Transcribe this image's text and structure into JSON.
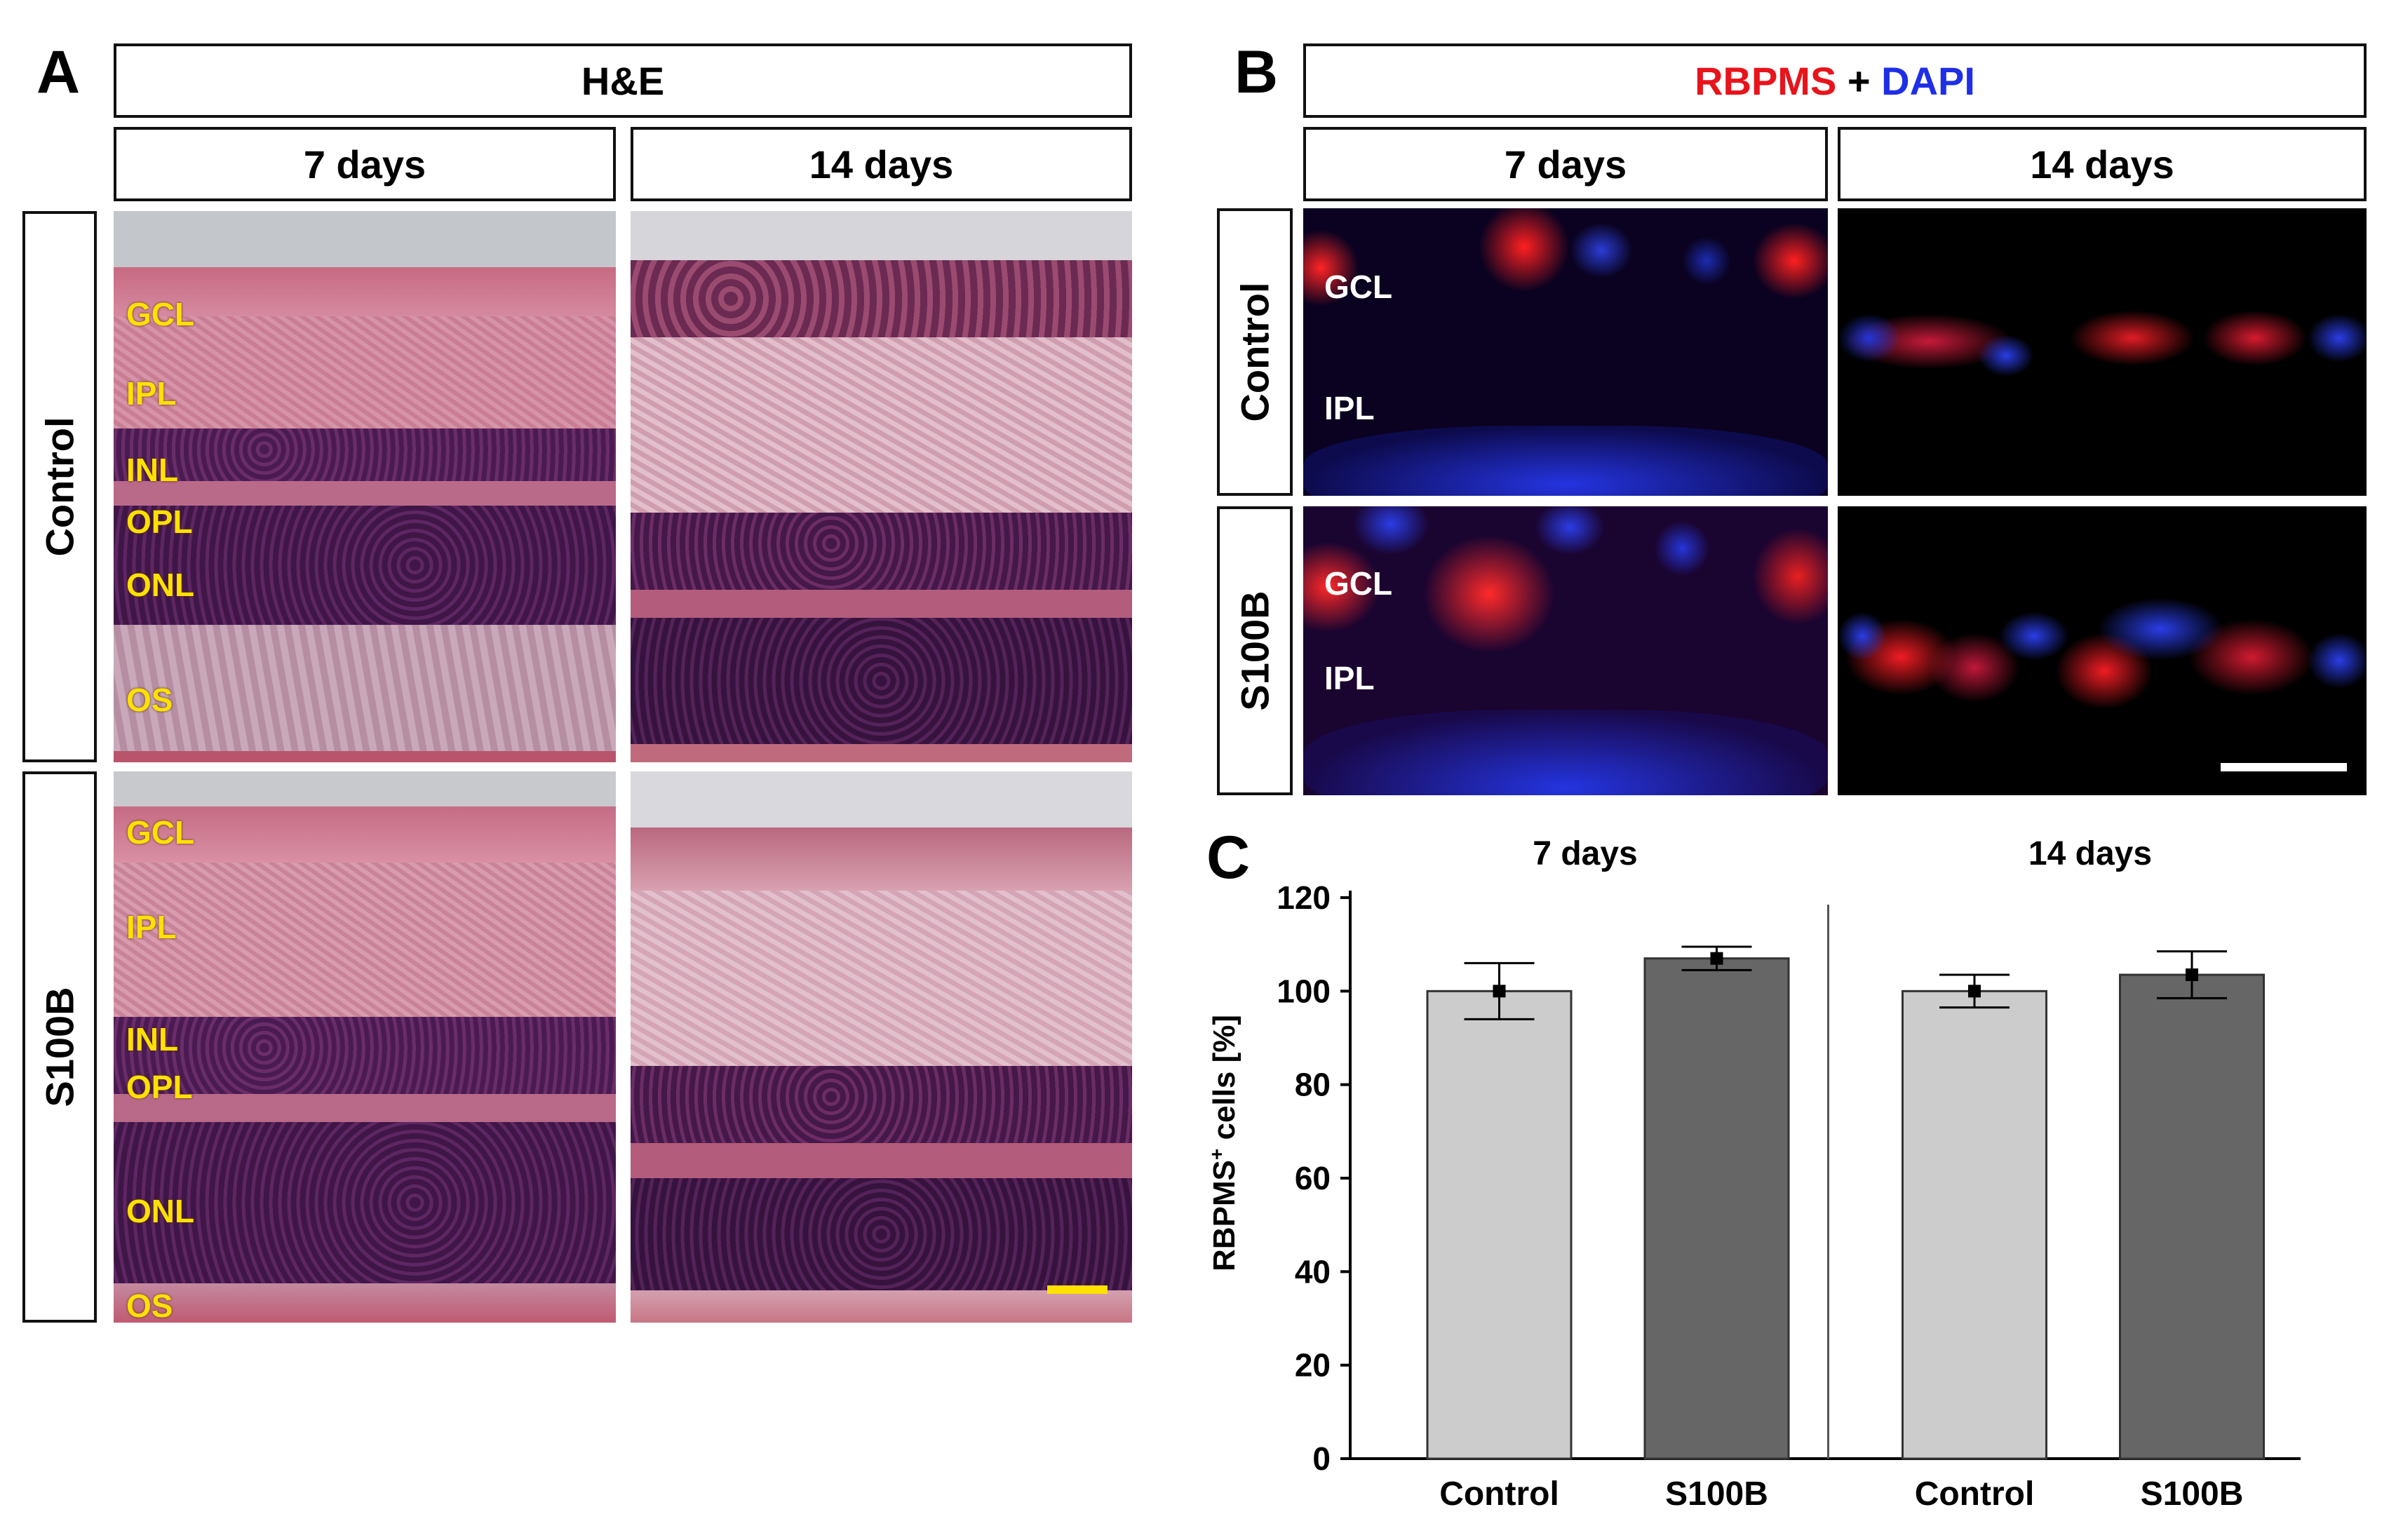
{
  "panel_a": {
    "letter": "A",
    "title": "H&E",
    "col_7": "7 days",
    "col_14": "14 days",
    "row_control": "Control",
    "row_s100b": "S100B",
    "layers": [
      "GCL",
      "IPL",
      "INL",
      "OPL",
      "ONL",
      "OS"
    ]
  },
  "panel_b": {
    "letter": "B",
    "title_red": "RBPMS",
    "title_plus": " + ",
    "title_blue": "DAPI",
    "col_7": "7 days",
    "col_14": "14 days",
    "row_control": "Control",
    "row_s100b": "S100B",
    "gcl": "GCL",
    "ipl": "IPL",
    "colors": {
      "rbpms": "#e8141c",
      "dapi": "#1f2fe6"
    }
  },
  "panel_c": {
    "letter": "C",
    "group_7": "7 days",
    "group_14": "14 days",
    "ylabel_main": "RBPMS",
    "ylabel_sup": "+",
    "ylabel_rest": " cells [%]"
  },
  "chart_data": {
    "type": "bar",
    "ylabel": "RBPMS+ cells [%]",
    "ylim": [
      0,
      120
    ],
    "yticks": [
      0,
      20,
      40,
      60,
      80,
      100,
      120
    ],
    "groups": [
      "7 days",
      "14 days"
    ],
    "categories": [
      "Control",
      "S100B",
      "Control",
      "S100B"
    ],
    "values": [
      100,
      107,
      100,
      103.5
    ],
    "errors": [
      6,
      2.5,
      3.5,
      5
    ],
    "colors": [
      "#cccccc",
      "#666666",
      "#cccccc",
      "#666666"
    ],
    "grid": false
  }
}
